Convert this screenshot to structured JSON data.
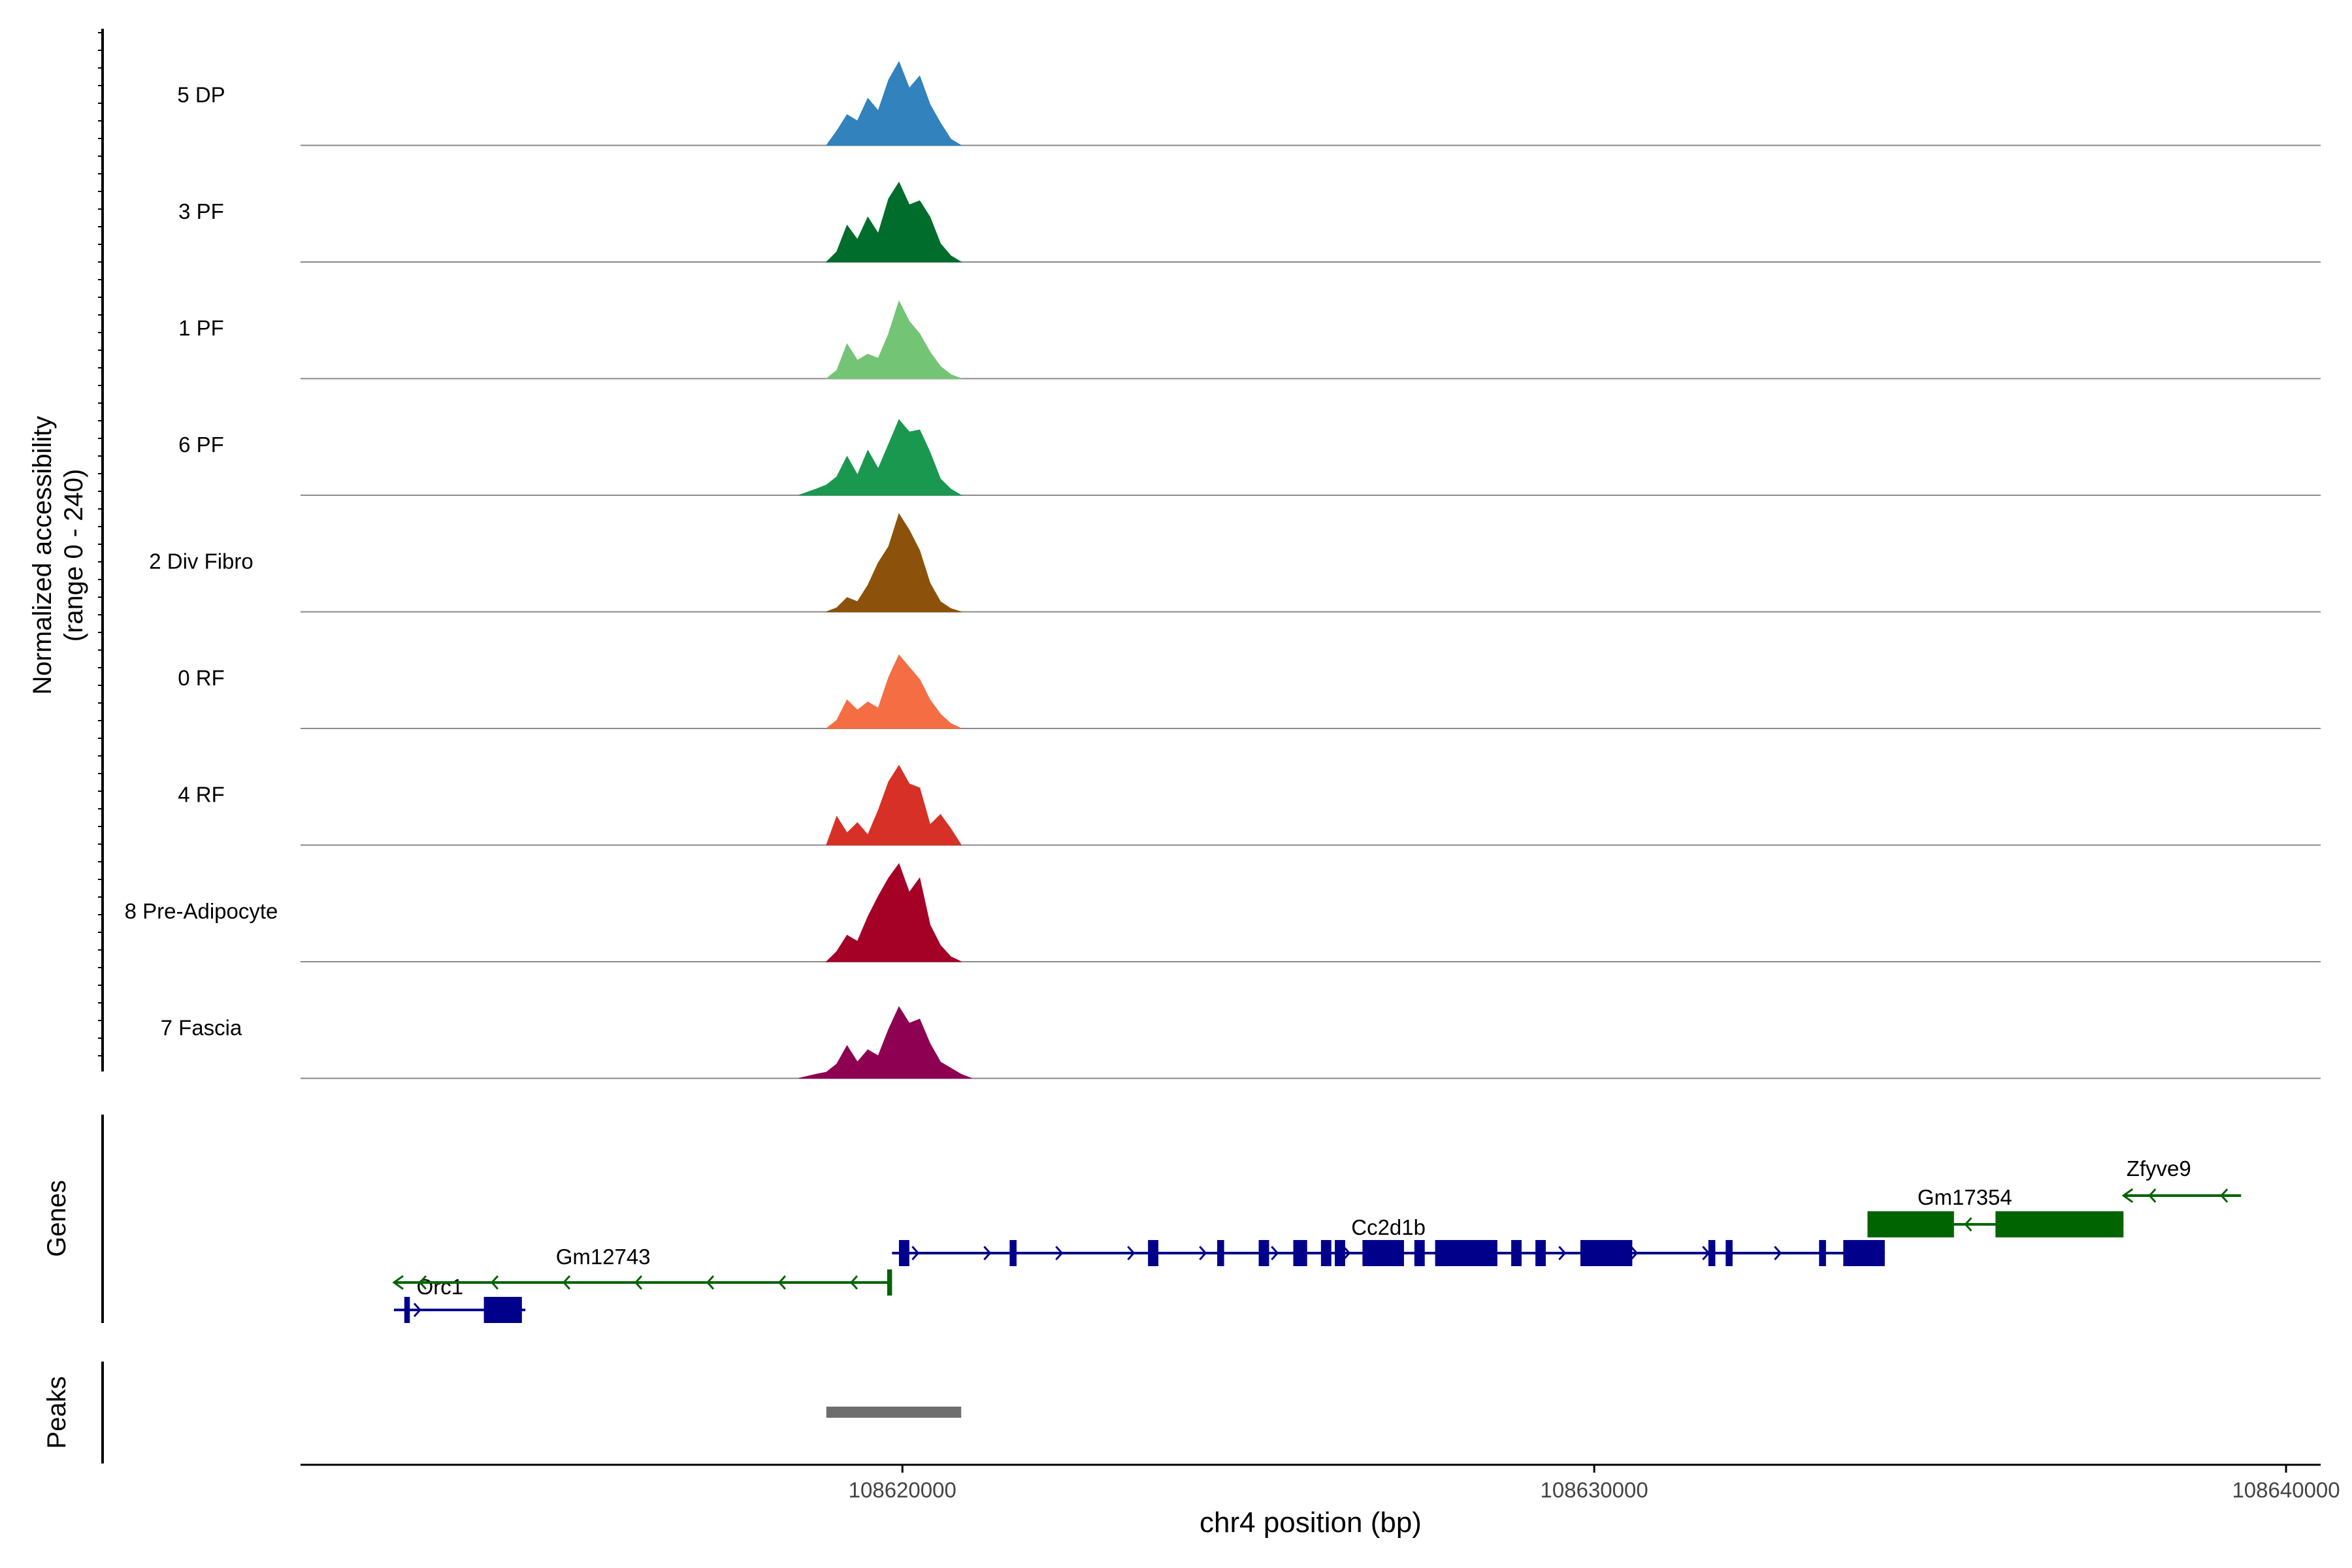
{
  "chart_data": {
    "type": "area",
    "title": "",
    "ylabel": "Normalized accessibility",
    "ylabel_range": "(range 0 - 240)",
    "xlabel": "chr4 position (bp)",
    "x_unit": "bp",
    "xlim": [
      108611300,
      108640500
    ],
    "ylim": [
      0,
      240
    ],
    "grid": false,
    "legend": "none",
    "x_ticks": [
      {
        "value": 108620000,
        "label": "108620000"
      },
      {
        "value": 108630000,
        "label": "108630000"
      },
      {
        "value": 108640000,
        "label": "108640000"
      }
    ],
    "tracks": [
      {
        "name": "5 DP",
        "color": "#3182BD",
        "x": [
          108618900,
          108619050,
          108619200,
          108619350,
          108619500,
          108619650,
          108619800,
          108619950,
          108620100,
          108620250,
          108620400,
          108620550,
          108620700,
          108620850
        ],
        "y": [
          0,
          35,
          75,
          60,
          115,
          85,
          160,
          205,
          140,
          170,
          100,
          55,
          15,
          0
        ]
      },
      {
        "name": "3 PF",
        "color": "#006D2C",
        "x": [
          108618900,
          108619050,
          108619200,
          108619350,
          108619500,
          108619650,
          108619800,
          108619950,
          108620100,
          108620250,
          108620400,
          108620550,
          108620700,
          108620850
        ],
        "y": [
          0,
          25,
          90,
          55,
          110,
          70,
          155,
          195,
          140,
          150,
          110,
          45,
          15,
          0
        ]
      },
      {
        "name": "1 PF",
        "color": "#74C476",
        "x": [
          108618900,
          108619050,
          108619200,
          108619350,
          108619500,
          108619650,
          108619800,
          108619950,
          108620100,
          108620250,
          108620400,
          108620550,
          108620700,
          108620850
        ],
        "y": [
          0,
          20,
          85,
          45,
          60,
          50,
          110,
          190,
          140,
          110,
          65,
          30,
          10,
          0
        ]
      },
      {
        "name": "6 PF",
        "color": "#1A9850",
        "x": [
          108618500,
          108618750,
          108618900,
          108619050,
          108619200,
          108619350,
          108619500,
          108619650,
          108619800,
          108619950,
          108620100,
          108620250,
          108620400,
          108620550,
          108620700,
          108620850
        ],
        "y": [
          0,
          15,
          25,
          45,
          95,
          50,
          110,
          65,
          125,
          185,
          155,
          160,
          105,
          40,
          15,
          0
        ]
      },
      {
        "name": "2 Div Fibro",
        "color": "#8C510A",
        "x": [
          108618900,
          108619050,
          108619200,
          108619350,
          108619500,
          108619650,
          108619800,
          108619950,
          108620100,
          108620250,
          108620400,
          108620550,
          108620700,
          108620850
        ],
        "y": [
          0,
          10,
          35,
          25,
          65,
          120,
          160,
          240,
          200,
          150,
          70,
          25,
          8,
          0
        ]
      },
      {
        "name": "0 RF",
        "color": "#F46D43",
        "x": [
          108618900,
          108619050,
          108619200,
          108619350,
          108619500,
          108619650,
          108619800,
          108619950,
          108620100,
          108620250,
          108620400,
          108620550,
          108620700,
          108620850
        ],
        "y": [
          0,
          20,
          70,
          45,
          65,
          50,
          125,
          180,
          150,
          120,
          70,
          35,
          12,
          0
        ]
      },
      {
        "name": "4 RF",
        "color": "#D73027",
        "x": [
          108618900,
          108619050,
          108619200,
          108619350,
          108619500,
          108619650,
          108619800,
          108619950,
          108620100,
          108620250,
          108620400,
          108620550,
          108620700,
          108620850
        ],
        "y": [
          0,
          70,
          30,
          55,
          25,
          85,
          155,
          195,
          150,
          140,
          50,
          75,
          40,
          0
        ]
      },
      {
        "name": "8 Pre-Adipocyte",
        "color": "#A50026",
        "x": [
          108618900,
          108619050,
          108619200,
          108619350,
          108619500,
          108619650,
          108619800,
          108619950,
          108620100,
          108620250,
          108620400,
          108620550,
          108620700,
          108620850
        ],
        "y": [
          0,
          25,
          65,
          50,
          110,
          160,
          205,
          240,
          170,
          205,
          90,
          40,
          12,
          0
        ]
      },
      {
        "name": "7 Fascia",
        "color": "#8E0152",
        "x": [
          108618500,
          108618750,
          108618900,
          108619050,
          108619200,
          108619350,
          108619500,
          108619650,
          108619800,
          108619950,
          108620100,
          108620250,
          108620400,
          108620550,
          108620700,
          108620850,
          108621000
        ],
        "y": [
          0,
          10,
          15,
          35,
          80,
          40,
          70,
          55,
          120,
          175,
          135,
          145,
          85,
          40,
          25,
          10,
          0
        ]
      }
    ],
    "genes": [
      {
        "name": "Orc1",
        "strand": "+",
        "color": "#00008B",
        "start": 108612650,
        "end": 108614550,
        "exons": [
          [
            108612800,
            108612880
          ],
          [
            108613950,
            108614500
          ]
        ]
      },
      {
        "name": "Gm12743",
        "strand": "-",
        "color": "#006400",
        "start": 108612650,
        "end": 108619850,
        "exons": [
          [
            108619780,
            108619850
          ]
        ]
      },
      {
        "name": "Cc2d1b",
        "strand": "+",
        "color": "#00008B",
        "start": 108619850,
        "end": 108634200,
        "exons": [
          [
            108619950,
            108620100
          ],
          [
            108621550,
            108621650
          ],
          [
            108623550,
            108623700
          ],
          [
            108624550,
            108624650
          ],
          [
            108625150,
            108625300
          ],
          [
            108625650,
            108625850
          ],
          [
            108626050,
            108626200
          ],
          [
            108626250,
            108626400
          ],
          [
            108626650,
            108627250
          ],
          [
            108627400,
            108627550
          ],
          [
            108627700,
            108628600
          ],
          [
            108628800,
            108628950
          ],
          [
            108629150,
            108629300
          ],
          [
            108629800,
            108630550
          ],
          [
            108631650,
            108631750
          ],
          [
            108631900,
            108632000
          ],
          [
            108633250,
            108633350
          ],
          [
            108633600,
            108634200
          ]
        ]
      },
      {
        "name": "Gm17354",
        "strand": "-",
        "color": "#006400",
        "start": 108633950,
        "end": 108637650,
        "exons": [
          [
            108633950,
            108635200
          ],
          [
            108635800,
            108637650
          ]
        ]
      },
      {
        "name": "Zfyve9",
        "strand": "-",
        "color": "#006400",
        "start": 108637650,
        "end": 108639350,
        "exons": []
      }
    ],
    "peaks": [
      {
        "start": 108618900,
        "end": 108620850,
        "color": "#6E6E6E"
      }
    ],
    "panels": {
      "genes_label": "Genes",
      "peaks_label": "Peaks"
    }
  }
}
